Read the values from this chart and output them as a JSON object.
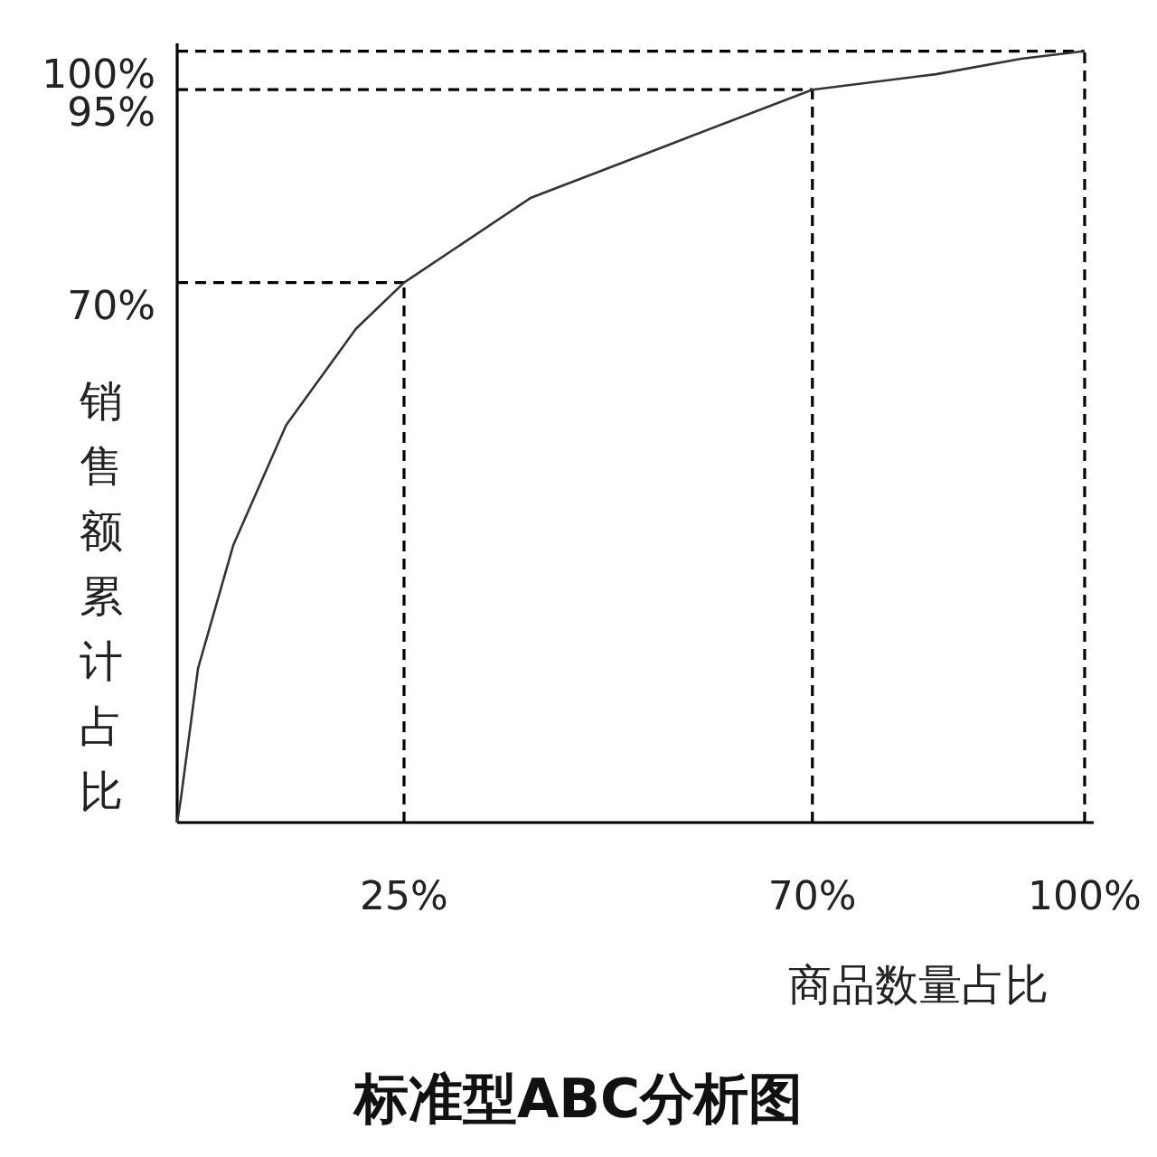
{
  "chart_data": {
    "type": "line",
    "title": "标准型ABC分析图",
    "xlabel": "商品数量占比",
    "ylabel": "销售额累计占比",
    "x": [
      0,
      0.4,
      2.3,
      6.2,
      12,
      19.7,
      25,
      39,
      54.5,
      70,
      83.6,
      93,
      100
    ],
    "series": [
      {
        "color": "#333333",
        "values": [
          0,
          3,
          20,
          36,
          51.5,
          64,
          70,
          81,
          88,
          95,
          97,
          99,
          100
        ]
      }
    ],
    "xlim": [
      0,
      101
    ],
    "ylim": [
      0,
      101
    ],
    "xticks": [
      {
        "value": 25,
        "label": "25%"
      },
      {
        "value": 70,
        "label": "70%"
      },
      {
        "value": 100,
        "label": "100%"
      }
    ],
    "yticks": [
      {
        "value": 70,
        "label": "70%"
      },
      {
        "value": 95,
        "label": "95%"
      },
      {
        "value": 100,
        "label": "100%"
      }
    ],
    "ref_lines": [
      {
        "axis": "x",
        "value": 25,
        "line_style": "dashed",
        "color": "#000000"
      },
      {
        "axis": "x",
        "value": 70,
        "line_style": "dashed",
        "color": "#000000"
      },
      {
        "axis": "x",
        "value": 100,
        "line_style": "dashed",
        "color": "#000000"
      },
      {
        "axis": "y",
        "value": 70,
        "line_style": "dashed",
        "color": "#000000"
      },
      {
        "axis": "y",
        "value": 95,
        "line_style": "dashed",
        "color": "#000000"
      },
      {
        "axis": "y",
        "value": 100,
        "line_style": "dashed",
        "color": "#000000"
      }
    ],
    "grid": false,
    "marker": "none",
    "line_style": "solid"
  }
}
